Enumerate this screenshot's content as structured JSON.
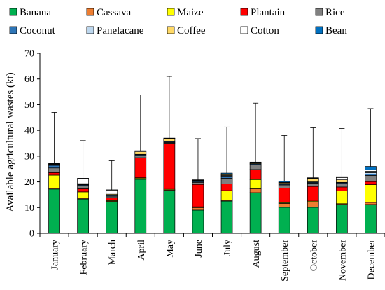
{
  "chart_data": {
    "type": "bar",
    "stacked": true,
    "ylabel": "Available agricultural wastes (kt)",
    "xlabel": "",
    "ylim": [
      0,
      70
    ],
    "yticks": [
      0,
      10,
      20,
      30,
      40,
      50,
      60,
      70
    ],
    "grid": false,
    "legend_position": "top",
    "categories": [
      "January",
      "February",
      "March",
      "April",
      "May",
      "June",
      "July",
      "August",
      "September",
      "October",
      "November",
      "December"
    ],
    "series": [
      {
        "name": "Banana",
        "color": "#00b050",
        "values": [
          17.2,
          13.3,
          12.1,
          21.0,
          16.5,
          9.0,
          12.5,
          15.8,
          10.1,
          10.1,
          11.2,
          11.2
        ]
      },
      {
        "name": "Cassava",
        "color": "#ed7d31",
        "values": [
          0.3,
          0.3,
          0.3,
          0.3,
          0.3,
          1.0,
          0.3,
          1.5,
          1.5,
          2.1,
          0.3,
          0.8
        ]
      },
      {
        "name": "Maize",
        "color": "#ffff00",
        "values": [
          5.1,
          2.5,
          0.3,
          0.3,
          0.3,
          0.3,
          3.8,
          3.6,
          0.3,
          0.3,
          5.0,
          6.9
        ]
      },
      {
        "name": "Plantain",
        "color": "#ff0000",
        "values": [
          1.0,
          1.2,
          1.2,
          7.8,
          17.9,
          8.7,
          2.6,
          3.9,
          5.7,
          5.7,
          1.5,
          1.2
        ]
      },
      {
        "name": "Rice",
        "color": "#808080",
        "values": [
          1.8,
          1.2,
          0.5,
          0.8,
          0.3,
          0.8,
          2.2,
          1.8,
          1.2,
          1.3,
          1.3,
          2.4
        ]
      },
      {
        "name": "Coconut",
        "color": "#2e75b6",
        "values": [
          1.0,
          0.3,
          0.3,
          0.3,
          0.3,
          0.3,
          0.8,
          0.3,
          0.3,
          0.3,
          0.3,
          0.5
        ]
      },
      {
        "name": "Panelacane",
        "color": "#bdd7ee",
        "values": [
          0.3,
          0.2,
          0.2,
          0.2,
          0.2,
          0.2,
          0.3,
          0.2,
          0.2,
          0.2,
          0.2,
          0.6
        ]
      },
      {
        "name": "Coffee",
        "color": "#ffd966",
        "values": [
          0.2,
          0.3,
          0.3,
          1.0,
          1.0,
          0.2,
          0.3,
          0.3,
          0.3,
          1.2,
          1.0,
          0.5
        ]
      },
      {
        "name": "Cotton",
        "color": "#ffffff",
        "values": [
          0.1,
          2.0,
          1.6,
          0.3,
          0.1,
          0.1,
          0.2,
          0.1,
          0.2,
          0.2,
          0.9,
          0.6
        ]
      },
      {
        "name": "Bean",
        "color": "#0070c0",
        "values": [
          0.2,
          0.1,
          0.1,
          0.1,
          0.1,
          0.2,
          0.4,
          0.2,
          0.4,
          0.2,
          0.3,
          1.3
        ]
      }
    ],
    "error_bar_top": [
      47.0,
      36.0,
      28.2,
      53.8,
      61.0,
      36.8,
      41.3,
      50.6,
      38.0,
      41.0,
      40.7,
      48.5
    ]
  }
}
